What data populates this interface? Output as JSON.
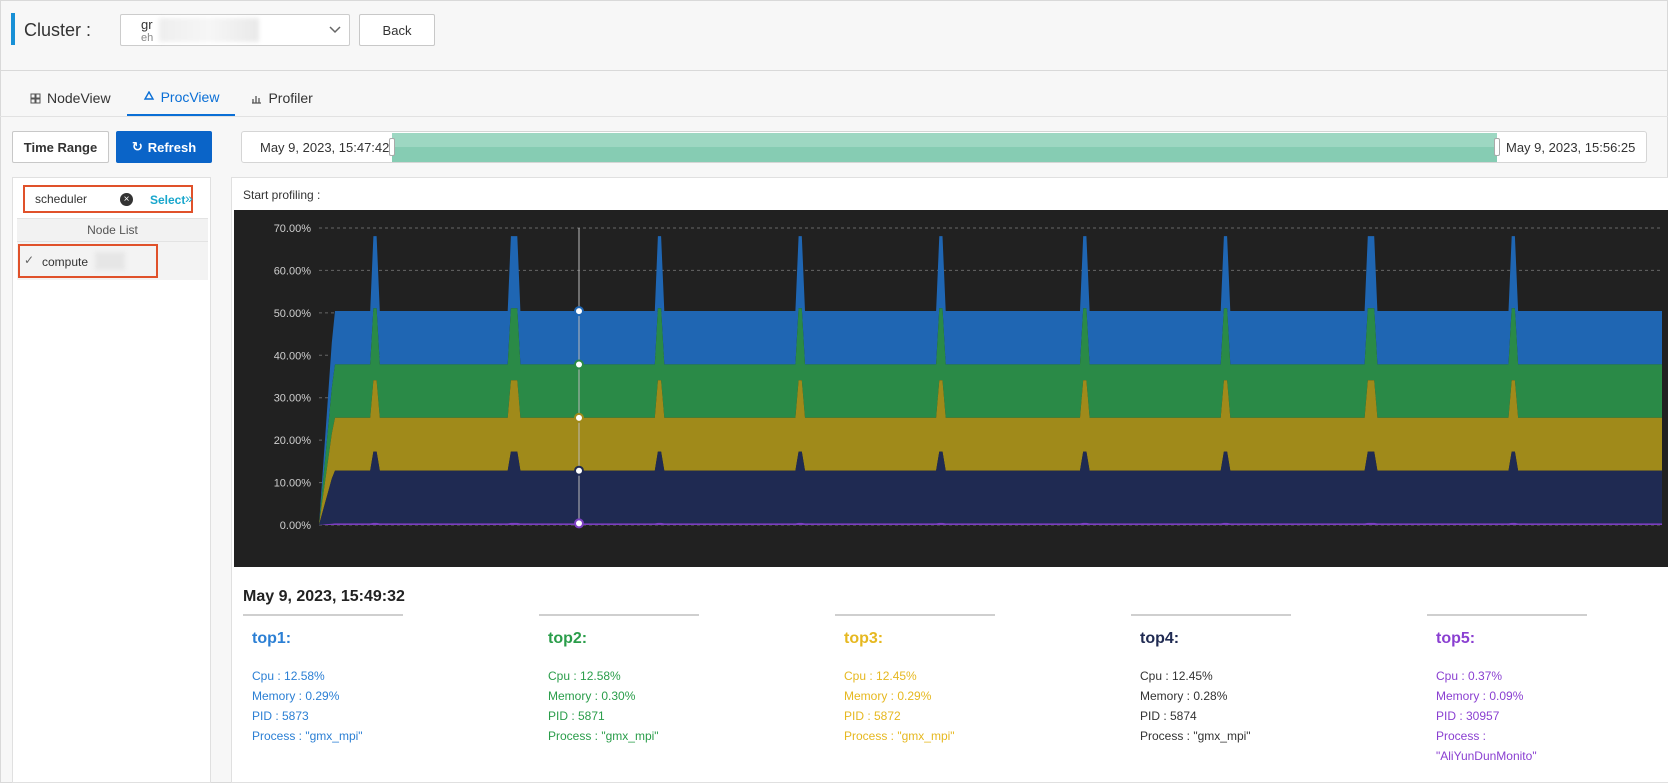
{
  "header": {
    "cluster_label": "Cluster :",
    "cluster_value": "gr",
    "cluster_sub": "eh",
    "back_label": "Back"
  },
  "tabs": [
    {
      "label": "NodeView",
      "icon": "grid-icon",
      "active": false
    },
    {
      "label": "ProcView",
      "icon": "recycle-icon",
      "active": true
    },
    {
      "label": "Profiler",
      "icon": "bar-chart-icon",
      "active": false
    }
  ],
  "toolbar": {
    "time_range_label": "Time Range",
    "refresh_label": "Refresh",
    "range_start": "May 9, 2023, 15:47:42",
    "range_end": "May 9, 2023, 15:56:25"
  },
  "sidebar": {
    "node_filter": "scheduler",
    "select_label": "Select",
    "node_list_header": "Node List",
    "nodes": [
      {
        "name": "compute",
        "checked": true
      }
    ]
  },
  "main": {
    "start_profiling_label": "Start profiling :",
    "timestamp": "May 9, 2023, 15:49:32",
    "tops": [
      {
        "title": "top1:",
        "color": "#2b7fd4",
        "cpu": "Cpu : 12.58%",
        "memory": "Memory : 0.29%",
        "pid": "PID : 5873",
        "process": "Process : \"gmx_mpi\""
      },
      {
        "title": "top2:",
        "color": "#2a9d4a",
        "cpu": "Cpu : 12.58%",
        "memory": "Memory : 0.30%",
        "pid": "PID : 5871",
        "process": "Process : \"gmx_mpi\""
      },
      {
        "title": "top3:",
        "color": "#e6b820",
        "cpu": "Cpu : 12.45%",
        "memory": "Memory : 0.29%",
        "pid": "PID : 5872",
        "process": "Process : \"gmx_mpi\""
      },
      {
        "title": "top4:",
        "color": "#1f2a52",
        "cpu": "Cpu : 12.45%",
        "memory": "Memory : 0.28%",
        "pid": "PID : 5874",
        "process": "Process : \"gmx_mpi\""
      },
      {
        "title": "top5:",
        "color": "#8a3fd1",
        "cpu": "Cpu : 0.37%",
        "memory": "Memory : 0.09%",
        "pid": "PID : 30957",
        "process": "Process :",
        "process2": "\"AliYunDunMonito\""
      }
    ]
  },
  "chart_data": {
    "type": "area",
    "stacked": true,
    "title": "",
    "xlabel": "",
    "ylabel": "",
    "ylim": [
      0,
      70
    ],
    "yticks": [
      "0.00%",
      "10.00%",
      "20.00%",
      "30.00%",
      "40.00%",
      "50.00%",
      "60.00%",
      "70.00%"
    ],
    "grid": true,
    "cursor_label": "May 9, 2023, 15:49:32",
    "series": [
      {
        "color": "#1f2a52",
        "level": 12.45
      },
      {
        "color": "#a08a1a",
        "level": 12.45
      },
      {
        "color": "#2a8a47",
        "level": 12.58
      },
      {
        "color": "#1f66b3",
        "level": 12.58
      },
      {
        "color": "#7b3fc1",
        "level": 0.37
      }
    ],
    "cursor_values": [
      0.37,
      12.8,
      25.25,
      37.83,
      50.41
    ]
  }
}
